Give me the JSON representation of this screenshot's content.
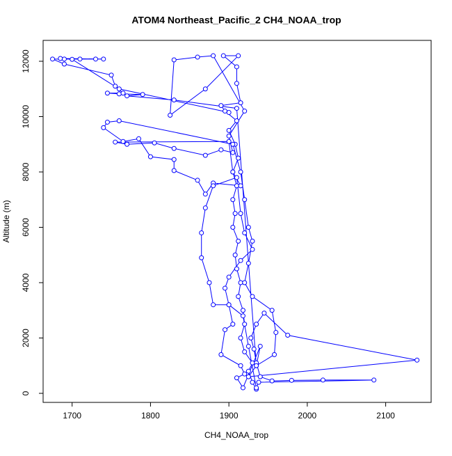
{
  "chart_data": {
    "type": "line",
    "title": "ATOM4 Northeast_Pacific_2 CH4_NOAA_trop",
    "xlabel": "CH4_NOAA_trop",
    "ylabel": "Altitude (m)",
    "color": "#0000ff",
    "xlim": [
      1663,
      2158
    ],
    "ylim": [
      -327,
      12755
    ],
    "xticks": [
      1700,
      1800,
      1900,
      2000,
      2100
    ],
    "yticks": [
      0,
      2000,
      4000,
      6000,
      8000,
      10000,
      12000
    ],
    "x": [
      1935,
      1930,
      1925,
      1930,
      1920,
      1915,
      1920,
      1918,
      1912,
      1915,
      1910,
      1908,
      1912,
      1905,
      1908,
      1905,
      1910,
      1905,
      1912,
      1908,
      1900,
      1910,
      1895,
      1890,
      1915,
      1910,
      1910,
      1893,
      1912,
      1870,
      1825,
      1830,
      1860,
      1880,
      1920,
      1900,
      1905,
      1890,
      1870,
      1830,
      1805,
      1770,
      1755,
      1900,
      1905,
      1915,
      1880,
      1870,
      1860,
      1830,
      1830,
      1800,
      1785,
      1765,
      1740,
      1745,
      1760,
      1905,
      1915,
      1920,
      1925,
      1930,
      1925,
      1920,
      1930,
      1955,
      1960,
      1958,
      1935,
      1925,
      2140,
      1975,
      1945,
      1935,
      1928,
      1932,
      1935,
      1940,
      1955,
      1980,
      2020,
      2085,
      1938,
      1935,
      1925,
      1918,
      1900,
      1880,
      1875,
      1865,
      1865,
      1870,
      1880,
      1910,
      1915,
      1920,
      1930,
      1915,
      1900,
      1895,
      1900,
      1905,
      1895,
      1890,
      1915,
      1920,
      1910,
      1918,
      1940,
      1935,
      1910,
      1830,
      1770,
      1790,
      1760,
      1745,
      1765,
      1755,
      1750,
      1690,
      1675,
      1690,
      1710,
      1730,
      1740,
      1685,
      1700,
      1760,
      1900
    ],
    "y": [
      150,
      400,
      800,
      1100,
      1500,
      2000,
      2500,
      3000,
      3500,
      4000,
      4500,
      5000,
      5500,
      6000,
      6500,
      7000,
      7500,
      8000,
      8500,
      9000,
      9500,
      9850,
      10200,
      10400,
      10500,
      11200,
      11800,
      12200,
      12200,
      11000,
      10050,
      12050,
      12150,
      12200,
      10200,
      9300,
      8700,
      8800,
      8600,
      8850,
      9050,
      9000,
      9080,
      9100,
      8000,
      7500,
      7600,
      7200,
      7700,
      8050,
      8450,
      8550,
      9200,
      9100,
      9600,
      9800,
      9850,
      9000,
      8000,
      7000,
      6000,
      5500,
      4700,
      4000,
      3500,
      3000,
      2200,
      1400,
      1000,
      600,
      1200,
      2100,
      2900,
      2500,
      2000,
      1600,
      1100,
      600,
      450,
      470,
      480,
      480,
      400,
      200,
      1700,
      2800,
      3200,
      3200,
      4000,
      4900,
      5800,
      6700,
      7500,
      7800,
      6500,
      5800,
      5200,
      4800,
      4200,
      3800,
      3200,
      2500,
      2300,
      1400,
      1000,
      700,
      560,
      200,
      1700,
      1000,
      10300,
      10600,
      10750,
      10800,
      10820,
      10850,
      10850,
      11100,
      11500,
      11900,
      12080,
      12080,
      12080,
      12080,
      12080,
      12100,
      12070,
      11000,
      10150
    ]
  }
}
